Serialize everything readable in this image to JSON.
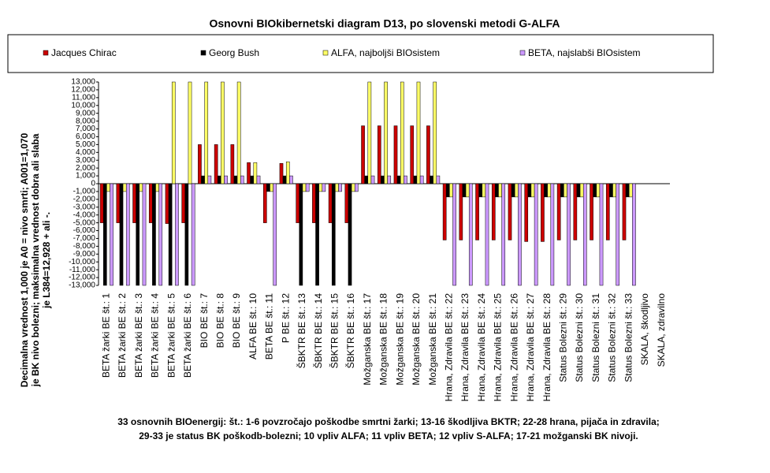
{
  "chart_data": {
    "type": "bar",
    "title": "Osnovni BIOkibernetski diagram D13, po slovenski metodi G-ALFA",
    "y_label": [
      "Decimalna vrednost 1,000 je A0 = nivo smrti; A001=1,070",
      "je BK nivo bolezni; maksimalna vrednost dobra ali slaba",
      "je L384=12,928 + ali -."
    ],
    "x_label": [
      "33 osnovnih BIOenergij: št.: 1-6 povzročajo poškodbe smrtni žarki; 13-16 škodljiva BKTR; 22-28 hrana, pijača in zdravila;",
      "29-33 je status BK poškodb-bolezni; 10 vpliv ALFA; 11 vpliv BETA; 12 vpliv S-ALFA; 17-21 možganski BK nivoji."
    ],
    "categories": [
      "BETA žarki BE št.: 1",
      "BETA žarki BE št.: 2",
      "BETA žarki BE št.: 3",
      "BETA žarki BE št.: 4",
      "BETA žarki BE št.: 5",
      "BETA žarki BE št.: 6",
      "BIO BE št.: 7",
      "BIO BE št.: 8",
      "BIO BE št.: 9",
      "ALFA BE št.: 10",
      "BETA BE št.: 11",
      "P BE št.: 12",
      "ŠBKTR BE št.: 13",
      "ŠBKTR BE št.: 14",
      "ŠBKTR BE št.: 15",
      "ŠBKTR BE št.: 16",
      "Možganska BE št.: 17",
      "Možganska BE št.: 18",
      "Možganska BE št.: 19",
      "Možganska BE št.: 20",
      "Možganska BE št.: 21",
      "Hrana, Zdravila BE št.: 22",
      "Hrana, Zdravila BE št.: 23",
      "Hrana, Zdravila BE št.: 24",
      "Hrana, Zdravila BE št.: 25",
      "Hrana, Zdravila BE št.: 26",
      "Hrana, Zdravila BE št.: 27",
      "Hrana, Zdravila BE št.: 28",
      "Status Bolezni št.: 29",
      "Status Bolezni št.: 30",
      "Status Bolezni št.: 31",
      "Status Bolezni št.: 32",
      "Status Bolezni št.: 33",
      "SKALA, škodljivo",
      "SKALA, zdravilno"
    ],
    "series": [
      {
        "name": "Jacques Chirac",
        "color": "#cc0000",
        "values": [
          -5000,
          -5000,
          -5000,
          -5000,
          -5100,
          -5000,
          5000,
          5000,
          5000,
          2700,
          -5000,
          2600,
          -5000,
          -5000,
          -5000,
          -5000,
          7400,
          7400,
          7400,
          7400,
          7400,
          -7200,
          -7200,
          -7200,
          -7200,
          -7200,
          -7400,
          -7400,
          -7200,
          -7200,
          -7200,
          -7200,
          -7200,
          0,
          0
        ]
      },
      {
        "name": "Georg Bush",
        "color": "#000000",
        "values": [
          -13000,
          -13000,
          -13000,
          -13000,
          -13000,
          -13000,
          1000,
          1000,
          1000,
          1000,
          -1000,
          1000,
          -13000,
          -13000,
          -13000,
          -13000,
          1000,
          1000,
          1000,
          1000,
          1000,
          -1700,
          -1700,
          -1700,
          -1700,
          -1700,
          -1700,
          -1700,
          -1700,
          -1700,
          -1700,
          -1700,
          -1700,
          0,
          0
        ]
      },
      {
        "name": "ALFA, najboljši BIOsistem",
        "color": "#ffff66",
        "values": [
          -1000,
          -1000,
          -1000,
          -1000,
          13000,
          13000,
          13000,
          13000,
          13000,
          2700,
          -1000,
          2800,
          -1000,
          -1000,
          -1000,
          -1000,
          13000,
          13000,
          13000,
          13000,
          13000,
          -1700,
          -1700,
          -1700,
          -1700,
          -1700,
          -1700,
          -1700,
          -1700,
          -1700,
          -1700,
          -1700,
          -1700,
          0,
          0
        ]
      },
      {
        "name": "BETA, najslabši BIOsistem",
        "color": "#cc99ff",
        "values": [
          -13000,
          -13000,
          -13000,
          -13000,
          -13000,
          -13000,
          1000,
          1000,
          1000,
          1000,
          -13000,
          1000,
          -1000,
          -1000,
          -1000,
          -1000,
          1000,
          1000,
          1000,
          1000,
          1000,
          -13000,
          -13000,
          -13000,
          -13000,
          -13000,
          -13000,
          -13000,
          -13000,
          -13000,
          -13000,
          -13000,
          -13000,
          0,
          0
        ]
      }
    ],
    "ylim": [
      -13000,
      13000
    ],
    "yticks": [
      {
        "value": 13000,
        "label": "13,000"
      },
      {
        "value": 12000,
        "label": "12,000"
      },
      {
        "value": 11000,
        "label": "11,000"
      },
      {
        "value": 10000,
        "label": "10,000"
      },
      {
        "value": 9000,
        "label": "9,000"
      },
      {
        "value": 8000,
        "label": "8,000"
      },
      {
        "value": 7000,
        "label": "7,000"
      },
      {
        "value": 6000,
        "label": "6,000"
      },
      {
        "value": 5000,
        "label": "5,000"
      },
      {
        "value": 4000,
        "label": "4,000"
      },
      {
        "value": 3000,
        "label": "3,000"
      },
      {
        "value": 2000,
        "label": "2,000"
      },
      {
        "value": 1000,
        "label": "1,000"
      },
      0,
      {
        "value": -1000,
        "label": "-1,000"
      },
      {
        "value": -2000,
        "label": "-2,000"
      },
      {
        "value": -3000,
        "label": "-3,000"
      },
      {
        "value": -4000,
        "label": "-4,000"
      },
      {
        "value": -5000,
        "label": "-5,000"
      },
      {
        "value": -6000,
        "label": "-6,000"
      },
      {
        "value": -7000,
        "label": "-7,000"
      },
      {
        "value": -8000,
        "label": "-8,000"
      },
      {
        "value": -9000,
        "label": "-9,000"
      },
      {
        "value": -10000,
        "label": "-10,000"
      },
      {
        "value": -11000,
        "label": "-11,000"
      },
      {
        "value": -12000,
        "label": "-12,000"
      },
      {
        "value": -13000,
        "label": "-13,000"
      }
    ],
    "grid": false,
    "legend": "top"
  }
}
